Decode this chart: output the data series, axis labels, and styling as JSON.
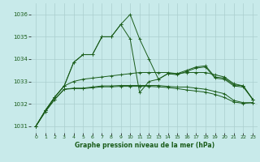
{
  "title": "Graphe pression niveau de la mer (hPa)",
  "background_color": "#c8eaea",
  "grid_color": "#aacece",
  "line_color": "#1a5c1a",
  "xlim": [
    -0.5,
    23.5
  ],
  "ylim": [
    1030.7,
    1036.5
  ],
  "yticks": [
    1031,
    1032,
    1033,
    1034,
    1035,
    1036
  ],
  "xticks": [
    0,
    1,
    2,
    3,
    4,
    5,
    6,
    7,
    8,
    9,
    10,
    11,
    12,
    13,
    14,
    15,
    16,
    17,
    18,
    19,
    20,
    21,
    22,
    23
  ],
  "series": [
    [
      1031.0,
      1031.7,
      1032.3,
      1032.8,
      1033.85,
      1034.2,
      1034.2,
      1035.0,
      1035.0,
      1035.55,
      1036.0,
      1034.9,
      1034.0,
      1033.1,
      1033.35,
      1033.35,
      1033.5,
      1033.65,
      1033.7,
      1033.2,
      1033.15,
      1032.85,
      1032.8,
      1032.2
    ],
    [
      1031.0,
      1031.7,
      1032.3,
      1032.8,
      1033.85,
      1034.2,
      1034.2,
      1035.0,
      1035.0,
      1035.55,
      1034.9,
      1032.5,
      1033.0,
      1033.1,
      1033.35,
      1033.3,
      1033.45,
      1033.6,
      1033.65,
      1033.15,
      1033.1,
      1032.8,
      1032.75,
      1032.2
    ],
    [
      1031.0,
      1031.7,
      1032.3,
      1032.8,
      1033.0,
      1033.1,
      1033.15,
      1033.2,
      1033.25,
      1033.3,
      1033.35,
      1033.4,
      1033.4,
      1033.4,
      1033.4,
      1033.35,
      1033.4,
      1033.4,
      1033.4,
      1033.3,
      1033.2,
      1032.9,
      1032.8,
      1032.2
    ],
    [
      1031.0,
      1031.65,
      1032.2,
      1032.65,
      1032.7,
      1032.7,
      1032.75,
      1032.8,
      1032.8,
      1032.82,
      1032.82,
      1032.82,
      1032.82,
      1032.82,
      1032.78,
      1032.75,
      1032.75,
      1032.7,
      1032.65,
      1032.55,
      1032.45,
      1032.15,
      1032.05,
      1032.05
    ],
    [
      1031.0,
      1031.65,
      1032.2,
      1032.65,
      1032.68,
      1032.68,
      1032.72,
      1032.76,
      1032.76,
      1032.78,
      1032.78,
      1032.78,
      1032.78,
      1032.76,
      1032.73,
      1032.68,
      1032.62,
      1032.57,
      1032.52,
      1032.42,
      1032.28,
      1032.08,
      1032.02,
      1032.05
    ]
  ]
}
